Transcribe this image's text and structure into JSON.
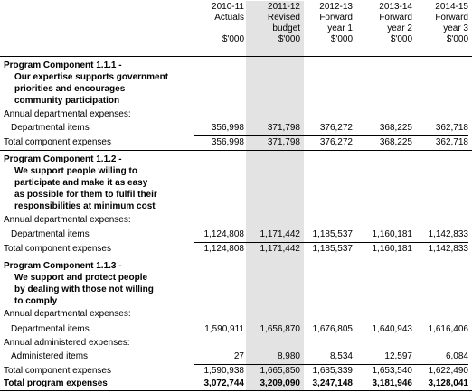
{
  "columns": [
    {
      "year": "2010-11",
      "line2": "Actuals",
      "line3": "",
      "unit": "$'000"
    },
    {
      "year": "2011-12",
      "line2": "Revised",
      "line3": "budget",
      "unit": "$'000"
    },
    {
      "year": "2012-13",
      "line2": "Forward",
      "line3": "year 1",
      "unit": "$'000"
    },
    {
      "year": "2013-14",
      "line2": "Forward",
      "line3": "year 2",
      "unit": "$'000"
    },
    {
      "year": "2014-15",
      "line2": "Forward",
      "line3": "year 3",
      "unit": "$'000"
    }
  ],
  "components": [
    {
      "title_lines": [
        "Program Component 1.1.1 -",
        "Our expertise supports government",
        "priorities and encourages",
        "community participation"
      ],
      "section1_label": "Annual departmental expenses:",
      "row1_label": "Departmental items",
      "row1_values": [
        "356,998",
        "371,798",
        "376,272",
        "368,225",
        "362,718"
      ],
      "total_label": "Total component expenses",
      "total_values": [
        "356,998",
        "371,798",
        "376,272",
        "368,225",
        "362,718"
      ]
    },
    {
      "title_lines": [
        "Program Component 1.1.2 -",
        "We support people willing to",
        "participate and make it as easy",
        "as possible for them to fulfil their",
        "responsibilities at minimum cost"
      ],
      "section1_label": "Annual departmental expenses:",
      "row1_label": "Departmental items",
      "row1_values": [
        "1,124,808",
        "1,171,442",
        "1,185,537",
        "1,160,181",
        "1,142,833"
      ],
      "total_label": "Total component expenses",
      "total_values": [
        "1,124,808",
        "1,171,442",
        "1,185,537",
        "1,160,181",
        "1,142,833"
      ]
    },
    {
      "title_lines": [
        "Program Component 1.1.3 -",
        "We support and protect people",
        "by dealing with those not willing",
        "to comply"
      ],
      "section1_label": "Annual departmental expenses:",
      "row1_label": "Departmental items",
      "row1_values": [
        "1,590,911",
        "1,656,870",
        "1,676,805",
        "1,640,943",
        "1,616,406"
      ],
      "section2_label": "Annual administered expenses:",
      "row2_label": "Administered items",
      "row2_values": [
        "27",
        "8,980",
        "8,534",
        "12,597",
        "6,084"
      ],
      "total_label": "Total component expenses",
      "total_values": [
        "1,590,938",
        "1,665,850",
        "1,685,339",
        "1,653,540",
        "1,622,490"
      ]
    }
  ],
  "program_total": {
    "label": "Total program expenses",
    "values": [
      "3,072,744",
      "3,209,090",
      "3,247,148",
      "3,181,946",
      "3,128,041"
    ]
  }
}
